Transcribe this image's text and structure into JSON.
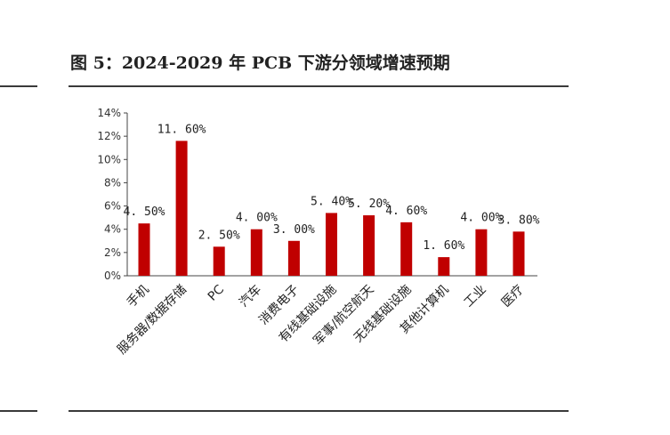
{
  "header": {
    "title": "图 5：2024-2029 年 PCB 下游分领域增速预期"
  },
  "chart_data": {
    "type": "bar",
    "title": "图 5：2024-2029 年 PCB 下游分领域增速预期",
    "xlabel": "",
    "ylabel": "",
    "ylim": [
      0,
      14
    ],
    "y_ticks": [
      "0%",
      "2%",
      "4%",
      "6%",
      "8%",
      "10%",
      "12%",
      "14%"
    ],
    "grid": false,
    "legend": "none",
    "bar_color": "#c00000",
    "categories": [
      "手机",
      "服务器/数据存储",
      "PC",
      "汽车",
      "消费电子",
      "有线基础设施",
      "军事/航空航天",
      "无线基础设施",
      "其他计算机",
      "工业",
      "医疗"
    ],
    "values": [
      4.5,
      11.6,
      2.5,
      4.0,
      3.0,
      5.4,
      5.2,
      4.6,
      1.6,
      4.0,
      3.8
    ],
    "value_labels": [
      "4. 50%",
      "11. 60%",
      "2. 50%",
      "4. 00%",
      "3. 00%",
      "5. 40%",
      "5. 20%",
      "4. 60%",
      "1. 60%",
      "4. 00%",
      "3. 80%"
    ]
  }
}
